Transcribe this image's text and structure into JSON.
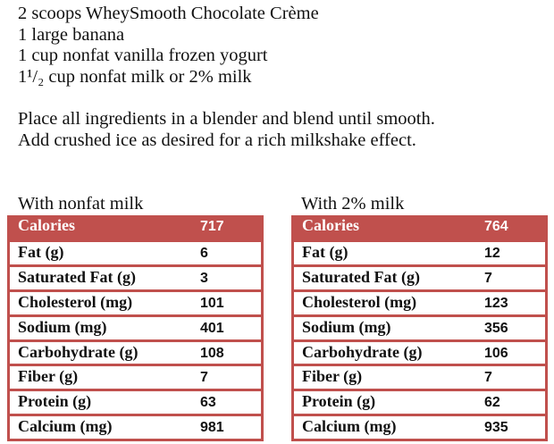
{
  "ingredients": [
    "2 scoops WheySmooth Chocolate Crème",
    "1 large banana",
    "1 cup nonfat vanilla frozen yogurt",
    "1¹/₂ cup nonfat milk or 2% milk"
  ],
  "instructions": [
    "Place all ingredients in a blender and blend until smooth.",
    "Add crushed ice as desired for a rich milkshake effect."
  ],
  "colors": {
    "accent": "#c0504d"
  },
  "tables": [
    {
      "caption": "With nonfat milk",
      "rows": [
        {
          "label": "Calories",
          "value": "717"
        },
        {
          "label": "Fat (g)",
          "value": "6"
        },
        {
          "label": "Saturated Fat (g)",
          "value": "3"
        },
        {
          "label": "Cholesterol (mg)",
          "value": "101"
        },
        {
          "label": "Sodium (mg)",
          "value": "401"
        },
        {
          "label": "Carbohydrate (g)",
          "value": "108"
        },
        {
          "label": "Fiber (g)",
          "value": "7"
        },
        {
          "label": "Protein (g)",
          "value": "63"
        },
        {
          "label": "Calcium (mg)",
          "value": "981"
        }
      ]
    },
    {
      "caption": "With 2% milk",
      "rows": [
        {
          "label": "Calories",
          "value": "764"
        },
        {
          "label": "Fat (g)",
          "value": "12"
        },
        {
          "label": "Saturated Fat (g)",
          "value": "7"
        },
        {
          "label": "Cholesterol (mg)",
          "value": "123"
        },
        {
          "label": "Sodium (mg)",
          "value": "356"
        },
        {
          "label": "Carbohydrate (g)",
          "value": "106"
        },
        {
          "label": "Fiber (g)",
          "value": "7"
        },
        {
          "label": "Protein (g)",
          "value": "62"
        },
        {
          "label": "Calcium (mg)",
          "value": "935"
        }
      ]
    }
  ]
}
